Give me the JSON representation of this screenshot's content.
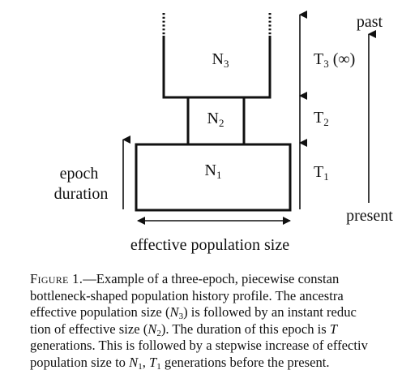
{
  "diagram": {
    "epochs": [
      {
        "label": "N",
        "sub": "3",
        "time_label": "T",
        "time_sub": "3",
        "time_suffix": " (∞)"
      },
      {
        "label": "N",
        "sub": "2",
        "time_label": "T",
        "time_sub": "2",
        "time_suffix": ""
      },
      {
        "label": "N",
        "sub": "1",
        "time_label": "T",
        "time_sub": "1",
        "time_suffix": ""
      }
    ],
    "epoch_duration": [
      "epoch",
      "duration"
    ],
    "x_label": "effective population size",
    "timeline": {
      "top": "past",
      "bottom": "present"
    }
  },
  "caption": {
    "figure_label": "Figure 1.",
    "lines": [
      {
        "segments": [
          {
            "t": "—Example of a three-epoch, piecewise constan",
            "s": ""
          }
        ]
      },
      {
        "segments": [
          {
            "t": "bottleneck-shaped population history profile. The ancestra",
            "s": ""
          }
        ]
      },
      {
        "segments": [
          {
            "t": "effective population size (",
            "s": ""
          },
          {
            "t": "N",
            "s": "it"
          },
          {
            "t": "3",
            "s": "sub"
          },
          {
            "t": ") is followed by an instant reduc",
            "s": ""
          }
        ]
      },
      {
        "segments": [
          {
            "t": "tion of effective size (",
            "s": ""
          },
          {
            "t": "N",
            "s": "it"
          },
          {
            "t": "2",
            "s": "sub"
          },
          {
            "t": "). The duration of this epoch is ",
            "s": ""
          },
          {
            "t": "T",
            "s": "it"
          }
        ]
      },
      {
        "segments": [
          {
            "t": "generations. This is followed by a stepwise increase of effectiv",
            "s": ""
          }
        ]
      },
      {
        "segments": [
          {
            "t": "population size to ",
            "s": ""
          },
          {
            "t": "N",
            "s": "it"
          },
          {
            "t": "1",
            "s": "sub"
          },
          {
            "t": ", ",
            "s": ""
          },
          {
            "t": "T",
            "s": "it"
          },
          {
            "t": "1",
            "s": "sub"
          },
          {
            "t": " generations before the present.",
            "s": ""
          }
        ]
      }
    ]
  }
}
